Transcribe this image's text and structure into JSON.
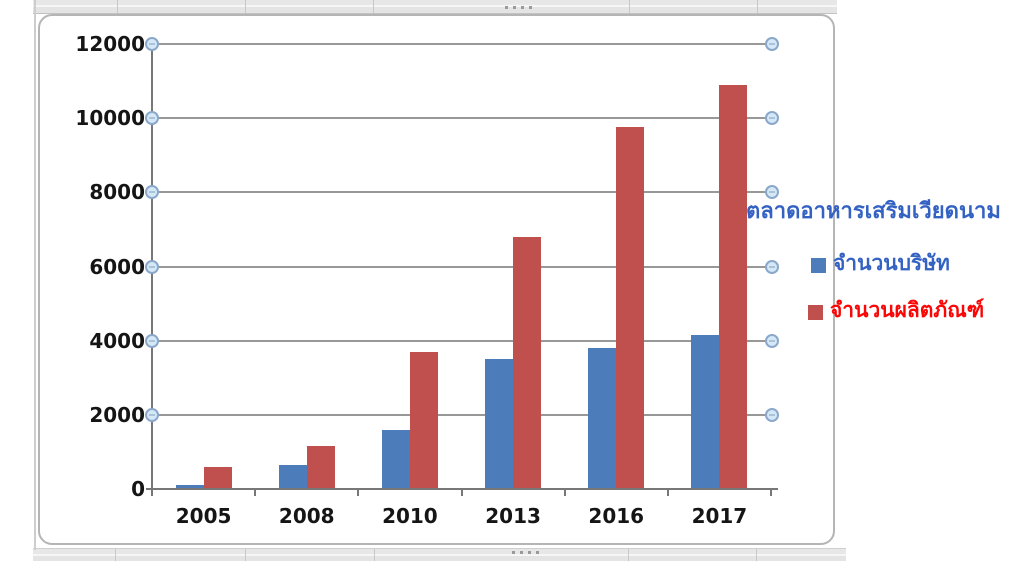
{
  "chart_data": {
    "type": "bar",
    "title": "ตลาดอาหารเสริมเวียดนาม",
    "title_color": "#3462c3",
    "categories": [
      "2005",
      "2008",
      "2010",
      "2013",
      "2016",
      "2017"
    ],
    "series": [
      {
        "name": "จำนวนบริษัท",
        "color": "#4d7cbb",
        "label_color": "#3462c3",
        "values": [
          100,
          650,
          1600,
          3500,
          3800,
          4150
        ]
      },
      {
        "name": "จำนวนผลิตภัณฑ์",
        "color": "#c0504d",
        "label_color": "#fa0606",
        "values": [
          600,
          1150,
          3700,
          6800,
          9750,
          10900
        ]
      }
    ],
    "ylim": [
      0,
      12000
    ],
    "ytick_step": 2000,
    "yticks": [
      "0",
      "2000",
      "4000",
      "6000",
      "8000",
      "10000",
      "12000"
    ],
    "grid": true,
    "legend_position": "right"
  },
  "colors": {
    "grid_line": "#989898",
    "axis_line": "#777777",
    "axis_label": "#151515",
    "handle_fill": "#d5e8f7",
    "handle_ring": "#8ba8cb",
    "frame_border": "#b5b5b5",
    "sheet_line": "#c8c8c8"
  }
}
